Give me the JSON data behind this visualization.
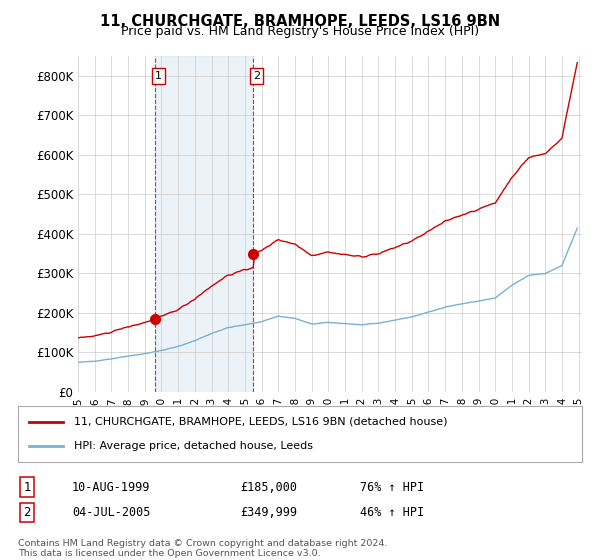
{
  "title1": "11, CHURCHGATE, BRAMHOPE, LEEDS, LS16 9BN",
  "title2": "Price paid vs. HM Land Registry's House Price Index (HPI)",
  "ylim": [
    0,
    850000
  ],
  "yticks": [
    0,
    100000,
    200000,
    300000,
    400000,
    500000,
    600000,
    700000,
    800000
  ],
  "ytick_labels": [
    "£0",
    "£100K",
    "£200K",
    "£300K",
    "£400K",
    "£500K",
    "£600K",
    "£700K",
    "£800K"
  ],
  "sale1_x": 1999.61,
  "sale1_price": 185000,
  "sale2_x": 2005.51,
  "sale2_price": 349999,
  "legend_house": "11, CHURCHGATE, BRAMHOPE, LEEDS, LS16 9BN (detached house)",
  "legend_hpi": "HPI: Average price, detached house, Leeds",
  "footnote": "Contains HM Land Registry data © Crown copyright and database right 2024.\nThis data is licensed under the Open Government Licence v3.0.",
  "table": [
    [
      "1",
      "10-AUG-1999",
      "£185,000",
      "76% ↑ HPI"
    ],
    [
      "2",
      "04-JUL-2005",
      "£349,999",
      "46% ↑ HPI"
    ]
  ],
  "hpi_color": "#7ab0d4",
  "house_color": "#cc0000",
  "shade_color": "#ddeeff",
  "vline_color": "#cc0000",
  "background_color": "#ffffff",
  "grid_color": "#cccccc"
}
